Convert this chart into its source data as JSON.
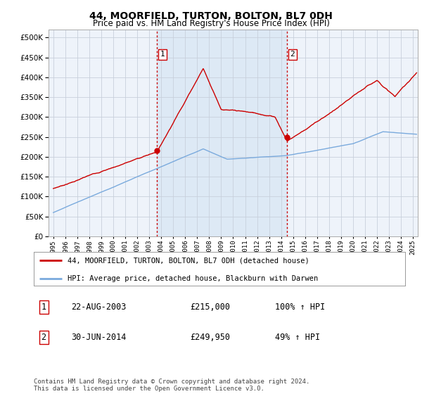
{
  "title": "44, MOORFIELD, TURTON, BOLTON, BL7 0DH",
  "subtitle": "Price paid vs. HM Land Registry's House Price Index (HPI)",
  "ytick_values": [
    0,
    50000,
    100000,
    150000,
    200000,
    250000,
    300000,
    350000,
    400000,
    450000,
    500000
  ],
  "ylim": [
    0,
    520000
  ],
  "sale1": {
    "date_num": 2003.65,
    "price": 215000,
    "label": "1"
  },
  "sale2": {
    "date_num": 2014.5,
    "price": 249950,
    "label": "2"
  },
  "vline1": 2003.65,
  "vline2": 2014.5,
  "legend_line1_label": "44, MOORFIELD, TURTON, BOLTON, BL7 0DH (detached house)",
  "legend_line2_label": "HPI: Average price, detached house, Blackburn with Darwen",
  "table_rows": [
    {
      "num": "1",
      "date": "22-AUG-2003",
      "price": "£215,000",
      "pct": "100% ↑ HPI"
    },
    {
      "num": "2",
      "date": "30-JUN-2014",
      "price": "£249,950",
      "pct": "49% ↑ HPI"
    }
  ],
  "footer": "Contains HM Land Registry data © Crown copyright and database right 2024.\nThis data is licensed under the Open Government Licence v3.0.",
  "line1_color": "#cc0000",
  "line2_color": "#7aaadd",
  "shade_color": "#dce8f5",
  "vline_color": "#cc0000",
  "point_color": "#cc0000",
  "plot_bg_color": "#eef3fa",
  "grid_color": "#c8d0dc",
  "xlim_start": 1994.6,
  "xlim_end": 2025.4
}
